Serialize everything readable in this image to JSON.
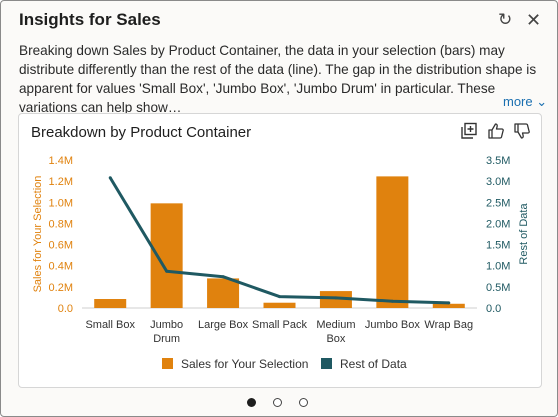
{
  "header": {
    "title": "Insights for Sales",
    "refresh_icon": "refresh-icon",
    "close_icon": "close-icon",
    "close_glyph": "✕",
    "refresh_glyph": "↻"
  },
  "description": "Breaking down Sales by Product Container, the data in your selection (bars) may distribute differently than the rest of the data (line). The gap in the distribution shape is apparent for values 'Small Box', 'Jumbo Box', 'Jumbo Drum' in particular. These variations can help show…",
  "more_label": "more ⌄",
  "card": {
    "title": "Breakdown by Product Container",
    "icons": [
      "add-to-canvas-icon",
      "thumbs-up-icon",
      "thumbs-down-icon"
    ]
  },
  "colors": {
    "bar": "#e0820e",
    "line": "#1f5962",
    "accent": "#1a6fb0"
  },
  "chart_data": {
    "type": "bar",
    "categories": [
      "Small Box",
      "Jumbo Drum",
      "Large Box",
      "Small Pack",
      "Medium Box",
      "Jumbo Box",
      "Wrap Bag"
    ],
    "category_lines": [
      [
        "Small Box"
      ],
      [
        "Jumbo",
        "Drum"
      ],
      [
        "Large Box"
      ],
      [
        "Small Pack"
      ],
      [
        "Medium",
        "Box"
      ],
      [
        "Jumbo Box"
      ],
      [
        "Wrap Bag"
      ]
    ],
    "series": [
      {
        "name": "Sales for Your Selection",
        "type": "bar",
        "axis": "left",
        "values": [
          0.085,
          0.99,
          0.28,
          0.05,
          0.16,
          1.245,
          0.04
        ]
      },
      {
        "name": "Rest of Data",
        "type": "line",
        "axis": "right",
        "values": [
          3.08,
          0.87,
          0.74,
          0.27,
          0.24,
          0.16,
          0.12
        ]
      }
    ],
    "ylabel": "Sales for Your Selection",
    "y2label": "Rest of Data",
    "ylim": [
      0,
      1.4
    ],
    "y2lim": [
      0,
      3.5
    ],
    "yticks": [
      "0.0",
      "0.2M",
      "0.4M",
      "0.6M",
      "0.8M",
      "1.0M",
      "1.2M",
      "1.4M"
    ],
    "y2ticks": [
      "0.0",
      "0.5M",
      "1.0M",
      "1.5M",
      "2.0M",
      "2.5M",
      "3.0M",
      "3.5M"
    ],
    "legend": [
      "Sales for Your Selection",
      "Rest of Data"
    ],
    "legend_position": "bottom",
    "grid": false
  },
  "pagination": {
    "count": 3,
    "active": 0
  }
}
